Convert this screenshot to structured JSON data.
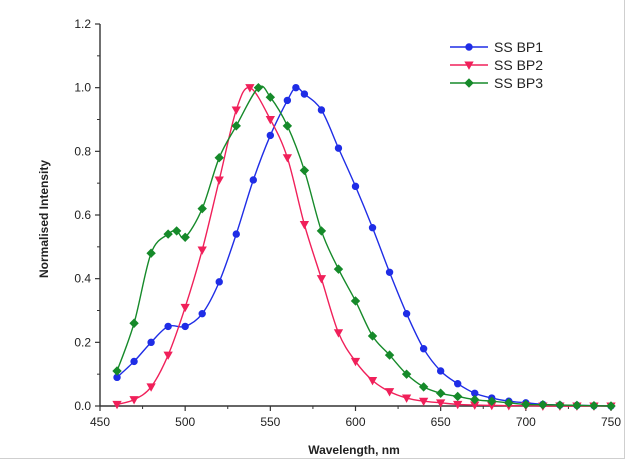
{
  "chart_data": {
    "type": "line",
    "title": "",
    "xlabel": "Wavelength, nm",
    "ylabel": "Normalised Intensity",
    "xlim": [
      450,
      750
    ],
    "ylim": [
      0.0,
      1.2
    ],
    "x_ticks": [
      "450",
      "500",
      "550",
      "600",
      "650",
      "700",
      "750"
    ],
    "y_ticks": [
      "0.0",
      "0.2",
      "0.4",
      "0.6",
      "0.8",
      "1.0",
      "1.2"
    ],
    "grid": false,
    "legend_position": "top-right",
    "series": [
      {
        "name": "SS BP1",
        "color": "#1f2de6",
        "marker": "circle",
        "x": [
          460,
          470,
          480,
          490,
          500,
          510,
          520,
          530,
          540,
          550,
          560,
          565,
          570,
          580,
          590,
          600,
          610,
          620,
          630,
          640,
          650,
          660,
          670,
          680,
          690,
          700,
          710,
          720,
          730,
          740,
          750
        ],
        "y": [
          0.09,
          0.14,
          0.2,
          0.25,
          0.25,
          0.29,
          0.39,
          0.54,
          0.71,
          0.85,
          0.96,
          1.0,
          0.98,
          0.93,
          0.81,
          0.69,
          0.56,
          0.42,
          0.29,
          0.18,
          0.11,
          0.07,
          0.04,
          0.025,
          0.015,
          0.01,
          0.005,
          0.003,
          0.002,
          0.001,
          0.0
        ]
      },
      {
        "name": "SS BP2",
        "color": "#f0205a",
        "marker": "triangle-down",
        "x": [
          460,
          470,
          480,
          490,
          500,
          510,
          520,
          530,
          538,
          550,
          560,
          570,
          580,
          590,
          600,
          610,
          620,
          630,
          640,
          650,
          660,
          670,
          680,
          690,
          700,
          710,
          720,
          730,
          740,
          750
        ],
        "y": [
          0.005,
          0.02,
          0.06,
          0.16,
          0.31,
          0.49,
          0.71,
          0.93,
          1.0,
          0.9,
          0.78,
          0.57,
          0.4,
          0.23,
          0.14,
          0.08,
          0.045,
          0.025,
          0.015,
          0.01,
          0.005,
          0.003,
          0.002,
          0.001,
          0.001,
          0.0,
          0.0,
          0.0,
          0.0,
          0.0
        ]
      },
      {
        "name": "SS BP3",
        "color": "#168a2a",
        "marker": "diamond",
        "x": [
          460,
          470,
          480,
          490,
          495,
          500,
          510,
          520,
          530,
          543,
          550,
          560,
          570,
          580,
          590,
          600,
          610,
          620,
          630,
          640,
          650,
          660,
          670,
          680,
          690,
          700,
          710,
          720,
          730,
          740,
          750
        ],
        "y": [
          0.11,
          0.26,
          0.48,
          0.54,
          0.55,
          0.53,
          0.62,
          0.78,
          0.88,
          1.0,
          0.97,
          0.88,
          0.74,
          0.55,
          0.43,
          0.33,
          0.22,
          0.16,
          0.1,
          0.06,
          0.04,
          0.03,
          0.02,
          0.015,
          0.01,
          0.005,
          0.004,
          0.003,
          0.002,
          0.001,
          0.0
        ]
      }
    ]
  }
}
